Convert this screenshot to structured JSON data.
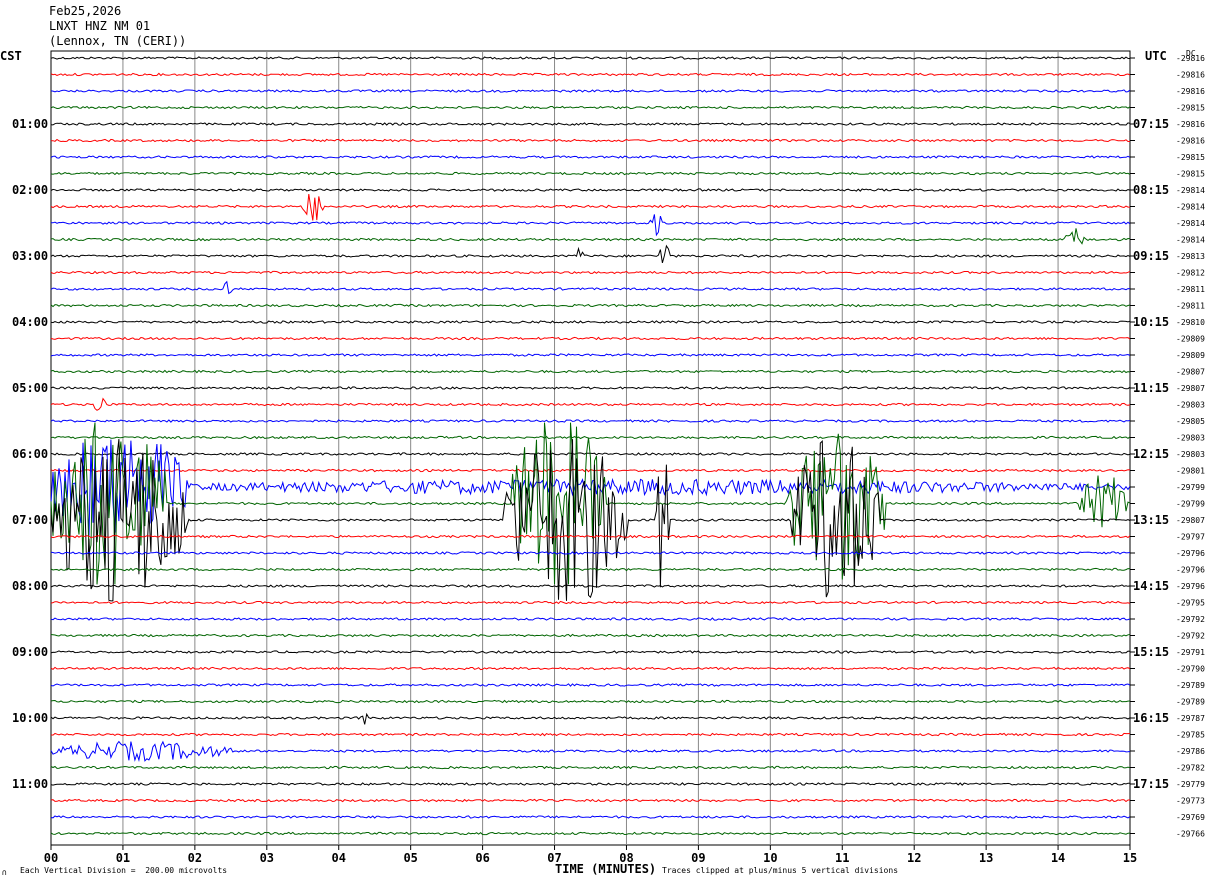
{
  "header": {
    "date": "Feb25,2026",
    "station": "LNXT HNZ NM 01",
    "location": "(Lennox, TN (CERI))"
  },
  "left_timezone": "CST",
  "right_timezone": "UTC",
  "right_unit": "DC",
  "footer": {
    "scale_note": "Each Vertical Division =  200.00 microvolts",
    "clip_note": "Traces clipped at plus/minus 5 vertical divisions",
    "corner_mark": "∩"
  },
  "chart_data": {
    "type": "line",
    "xlabel": "TIME (MINUTES)",
    "x_range": [
      0,
      15
    ],
    "x_ticks": [
      "00",
      "01",
      "02",
      "03",
      "04",
      "05",
      "06",
      "07",
      "08",
      "09",
      "10",
      "11",
      "12",
      "13",
      "14",
      "15"
    ],
    "trace_colors": [
      "#000000",
      "#ff0000",
      "#0000ff",
      "#006400"
    ],
    "left_hour_labels": [
      "01:00",
      "02:00",
      "03:00",
      "04:00",
      "05:00",
      "06:00",
      "07:00",
      "08:00",
      "09:00",
      "10:00",
      "11:00"
    ],
    "right_hour_labels": [
      "07:15",
      "08:15",
      "09:15",
      "10:15",
      "11:15",
      "12:15",
      "13:15",
      "14:15",
      "15:15",
      "16:15",
      "17:15"
    ],
    "dc_offsets": [
      "-29816",
      "-29816",
      "-29816",
      "-29815",
      "-29816",
      "-29816",
      "-29815",
      "-29815",
      "-29814",
      "-29814",
      "-29814",
      "-29814",
      "-29813",
      "-29812",
      "-29811",
      "-29811",
      "-29810",
      "-29809",
      "-29809",
      "-29807",
      "-29807",
      "-29803",
      "-29805",
      "-29803",
      "-29803",
      "-29801",
      "-29799",
      "-29799",
      "-29807",
      "-29797",
      "-29796",
      "-29796",
      "-29796",
      "-29795",
      "-29792",
      "-29792",
      "-29791",
      "-29790",
      "-29789",
      "-29789",
      "-29787",
      "-29785",
      "-29786",
      "-29782",
      "-29779",
      "-29773",
      "-29769",
      "-29766"
    ],
    "events": [
      {
        "trace": 26,
        "t0": 0.0,
        "t1": 1.9,
        "amp": 6
      },
      {
        "trace": 27,
        "t0": 0.0,
        "t1": 1.6,
        "amp": 10
      },
      {
        "trace": 28,
        "t0": 0.0,
        "t1": 1.9,
        "amp": 9
      },
      {
        "trace": 27,
        "t0": 6.4,
        "t1": 7.7,
        "amp": 10
      },
      {
        "trace": 28,
        "t0": 6.3,
        "t1": 8.0,
        "amp": 9
      },
      {
        "trace": 28,
        "t0": 8.4,
        "t1": 8.6,
        "amp": 8
      },
      {
        "trace": 27,
        "t0": 10.2,
        "t1": 11.6,
        "amp": 8
      },
      {
        "trace": 28,
        "t0": 10.3,
        "t1": 11.5,
        "amp": 9
      },
      {
        "trace": 27,
        "t0": 14.3,
        "t1": 15.0,
        "amp": 3
      },
      {
        "trace": 26,
        "t0": 1.5,
        "t1": 15.0,
        "amp": 0.8
      },
      {
        "trace": 9,
        "t0": 3.5,
        "t1": 3.8,
        "amp": 1.6
      },
      {
        "trace": 10,
        "t0": 8.3,
        "t1": 8.5,
        "amp": 1.3
      },
      {
        "trace": 11,
        "t0": 14.1,
        "t1": 14.4,
        "amp": 1.2
      },
      {
        "trace": 12,
        "t0": 7.3,
        "t1": 7.4,
        "amp": 1.4
      },
      {
        "trace": 12,
        "t0": 8.45,
        "t1": 8.6,
        "amp": 1.8
      },
      {
        "trace": 14,
        "t0": 2.4,
        "t1": 2.5,
        "amp": 1.3
      },
      {
        "trace": 21,
        "t0": 0.6,
        "t1": 0.8,
        "amp": 1.2
      },
      {
        "trace": 42,
        "t0": 0.0,
        "t1": 2.5,
        "amp": 1.0
      },
      {
        "trace": 40,
        "t0": 4.3,
        "t1": 4.4,
        "amp": 1.1
      }
    ]
  }
}
